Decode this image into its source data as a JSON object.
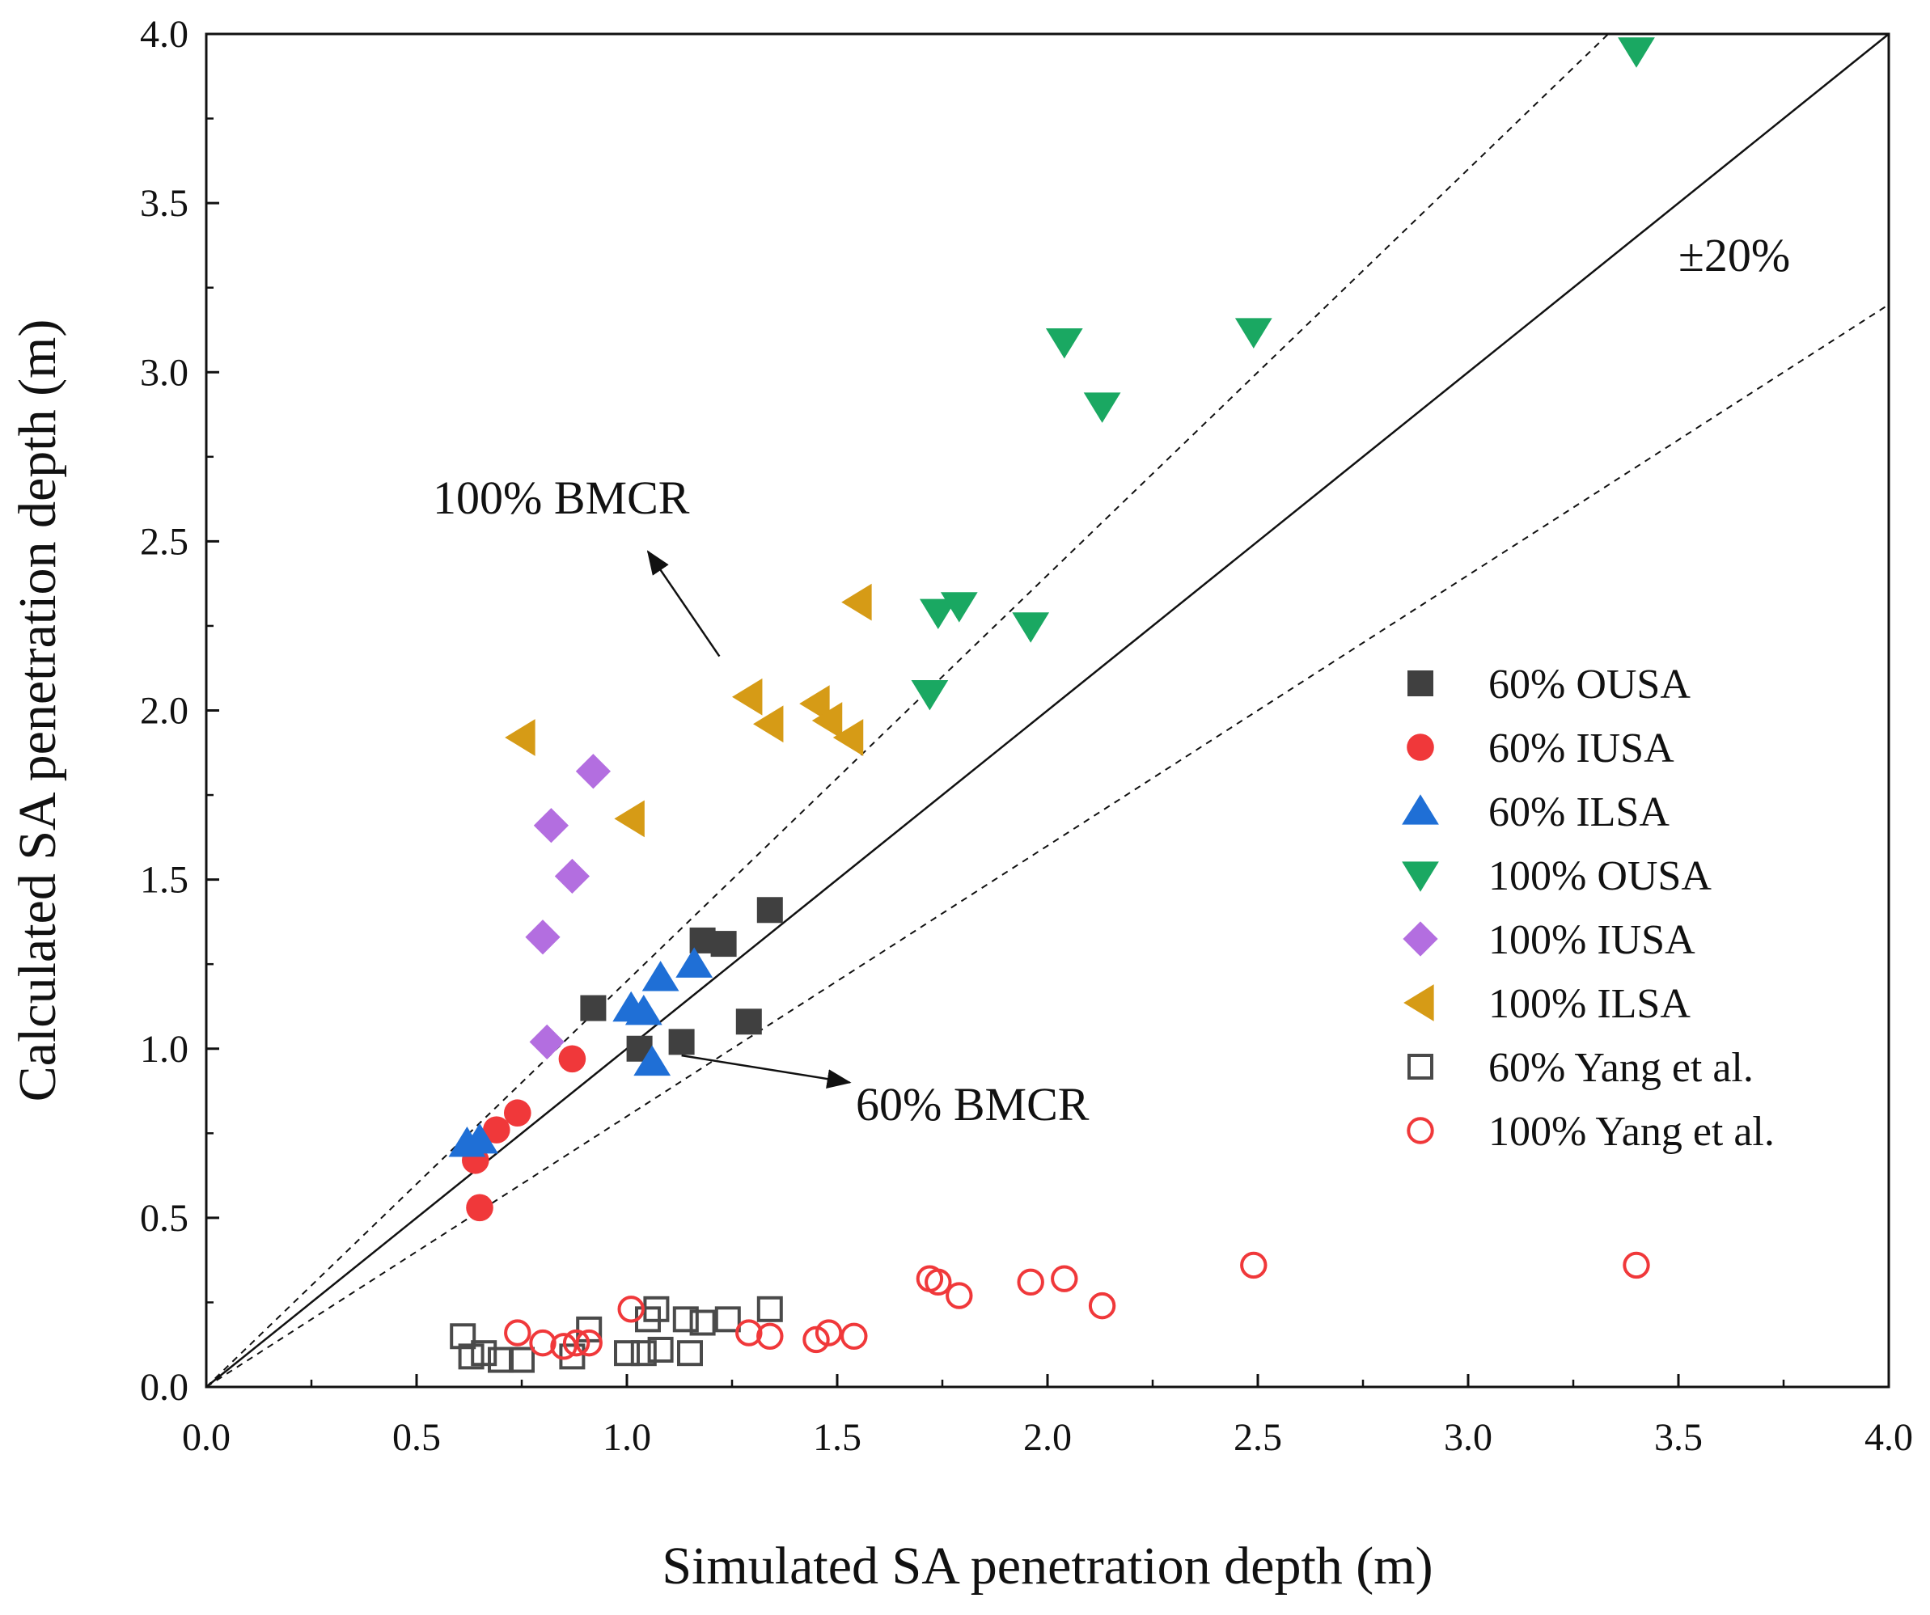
{
  "chart_data": {
    "type": "scatter",
    "xlabel": "Simulated SA penetration depth (m)",
    "ylabel": "Calculated SA penetration depth (m)",
    "xlim": [
      0,
      4
    ],
    "ylim": [
      0,
      4
    ],
    "xticks": [
      "0.0",
      "0.5",
      "1.0",
      "1.5",
      "2.0",
      "2.5",
      "3.0",
      "3.5",
      "4.0"
    ],
    "yticks": [
      "0.0",
      "0.5",
      "1.0",
      "1.5",
      "2.0",
      "2.5",
      "3.0",
      "3.5",
      "4.0"
    ],
    "grid": false,
    "legend_position": "right",
    "reference_lines": {
      "identity": "y = x",
      "band": "±20%"
    },
    "annotations": [
      {
        "text": "100% BMCR",
        "x": 0.93,
        "y": 2.48,
        "arrow_from": [
          1.22,
          2.16
        ],
        "arrow_to": [
          1.05,
          2.47
        ]
      },
      {
        "text": "60% BMCR",
        "x": 1.55,
        "y": 0.95,
        "arrow_from": [
          1.13,
          0.98
        ],
        "arrow_to": [
          1.53,
          0.9
        ]
      },
      {
        "text": "±20%",
        "x": 3.65,
        "y": 3.33
      }
    ],
    "series": [
      {
        "name": "60% OUSA",
        "marker": "square",
        "filled": true,
        "color": "#404040",
        "points": [
          [
            0.92,
            1.12
          ],
          [
            1.03,
            1.0
          ],
          [
            1.13,
            1.02
          ],
          [
            1.18,
            1.32
          ],
          [
            1.23,
            1.31
          ],
          [
            1.29,
            1.08
          ],
          [
            1.34,
            1.41
          ]
        ]
      },
      {
        "name": "60% IUSA",
        "marker": "circle",
        "filled": true,
        "color": "#f0383a",
        "points": [
          [
            0.64,
            0.67
          ],
          [
            0.65,
            0.53
          ],
          [
            0.69,
            0.76
          ],
          [
            0.74,
            0.81
          ],
          [
            0.87,
            0.97
          ]
        ]
      },
      {
        "name": "60% ILSA",
        "marker": "triangle-up",
        "filled": true,
        "color": "#1f6fd6",
        "points": [
          [
            0.62,
            0.72
          ],
          [
            0.65,
            0.73
          ],
          [
            1.01,
            1.12
          ],
          [
            1.04,
            1.11
          ],
          [
            1.06,
            0.96
          ],
          [
            1.08,
            1.21
          ],
          [
            1.16,
            1.25
          ]
        ]
      },
      {
        "name": "100% OUSA",
        "marker": "triangle-down",
        "filled": true,
        "color": "#1aa862",
        "points": [
          [
            1.72,
            2.05
          ],
          [
            1.74,
            2.29
          ],
          [
            1.79,
            2.31
          ],
          [
            1.96,
            2.25
          ],
          [
            2.04,
            3.09
          ],
          [
            2.13,
            2.9
          ],
          [
            2.49,
            3.12
          ],
          [
            3.4,
            3.95
          ]
        ]
      },
      {
        "name": "100% IUSA",
        "marker": "diamond",
        "filled": true,
        "color": "#b36ee0",
        "points": [
          [
            0.8,
            1.33
          ],
          [
            0.81,
            1.02
          ],
          [
            0.82,
            1.66
          ],
          [
            0.87,
            1.51
          ],
          [
            0.92,
            1.82
          ]
        ]
      },
      {
        "name": "100% ILSA",
        "marker": "triangle-left",
        "filled": true,
        "color": "#d69b16",
        "points": [
          [
            0.75,
            1.92
          ],
          [
            1.01,
            1.68
          ],
          [
            1.29,
            2.04
          ],
          [
            1.34,
            1.96
          ],
          [
            1.45,
            2.02
          ],
          [
            1.48,
            1.97
          ],
          [
            1.53,
            1.92
          ],
          [
            1.55,
            2.32
          ]
        ]
      },
      {
        "name": "60% Yang et al.",
        "marker": "square",
        "filled": false,
        "color": "#4a4a4a",
        "points": [
          [
            0.61,
            0.15
          ],
          [
            0.63,
            0.09
          ],
          [
            0.66,
            0.1
          ],
          [
            0.7,
            0.08
          ],
          [
            0.75,
            0.08
          ],
          [
            0.87,
            0.09
          ],
          [
            0.91,
            0.17
          ],
          [
            1.0,
            0.1
          ],
          [
            1.04,
            0.1
          ],
          [
            1.05,
            0.2
          ],
          [
            1.07,
            0.23
          ],
          [
            1.08,
            0.11
          ],
          [
            1.14,
            0.2
          ],
          [
            1.15,
            0.1
          ],
          [
            1.18,
            0.19
          ],
          [
            1.24,
            0.2
          ],
          [
            1.34,
            0.23
          ]
        ]
      },
      {
        "name": "100% Yang et al.",
        "marker": "circle",
        "filled": false,
        "color": "#f0383a",
        "points": [
          [
            0.74,
            0.16
          ],
          [
            0.8,
            0.13
          ],
          [
            0.85,
            0.12
          ],
          [
            0.88,
            0.13
          ],
          [
            0.91,
            0.13
          ],
          [
            1.01,
            0.23
          ],
          [
            1.29,
            0.16
          ],
          [
            1.34,
            0.15
          ],
          [
            1.45,
            0.14
          ],
          [
            1.48,
            0.16
          ],
          [
            1.54,
            0.15
          ],
          [
            1.72,
            0.32
          ],
          [
            1.74,
            0.31
          ],
          [
            1.79,
            0.27
          ],
          [
            1.96,
            0.31
          ],
          [
            2.04,
            0.32
          ],
          [
            2.13,
            0.24
          ],
          [
            2.49,
            0.36
          ],
          [
            3.4,
            0.36
          ]
        ]
      }
    ]
  }
}
